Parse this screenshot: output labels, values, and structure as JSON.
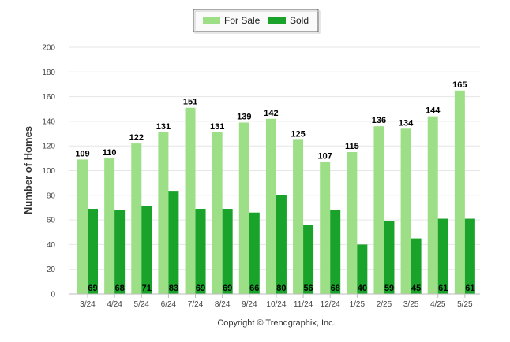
{
  "chart_data": {
    "type": "bar",
    "categories": [
      "3/24",
      "4/24",
      "5/24",
      "6/24",
      "7/24",
      "8/24",
      "9/24",
      "10/24",
      "11/24",
      "12/24",
      "1/25",
      "2/25",
      "3/25",
      "4/25",
      "5/25"
    ],
    "series": [
      {
        "name": "For Sale",
        "color": "#9ddf86",
        "values": [
          109,
          110,
          122,
          131,
          151,
          131,
          139,
          142,
          125,
          107,
          115,
          136,
          134,
          144,
          165
        ]
      },
      {
        "name": "Sold",
        "color": "#1aa32a",
        "values": [
          69,
          68,
          71,
          83,
          69,
          69,
          66,
          80,
          56,
          68,
          40,
          59,
          45,
          61,
          61
        ]
      }
    ],
    "ylabel": "Number of Homes",
    "ylim": [
      0,
      200
    ],
    "yticks": [
      0,
      20,
      40,
      60,
      80,
      100,
      120,
      140,
      160,
      180,
      200
    ],
    "grid": true,
    "legend": "top-center",
    "footer": "Copyright © Trendgraphix, Inc."
  }
}
